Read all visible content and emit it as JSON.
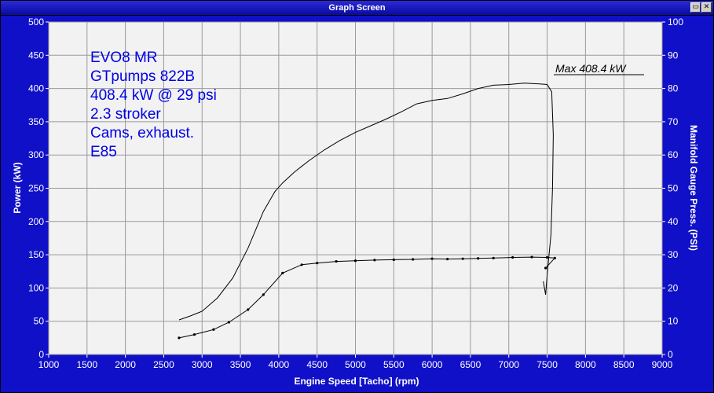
{
  "window": {
    "title": "Graph Screen"
  },
  "chart_data": {
    "type": "line",
    "xlabel": "Engine Speed [Tacho] (rpm)",
    "ylabel": "Power (kW)",
    "y2label": "Manifold Gauge Press. (PSI)",
    "xlim": [
      1000,
      9000
    ],
    "ylim": [
      0,
      500
    ],
    "y2lim": [
      0,
      100
    ],
    "xticks": [
      1000,
      1500,
      2000,
      2500,
      3000,
      3500,
      4000,
      4500,
      5000,
      5500,
      6000,
      6500,
      7000,
      7500,
      8000,
      8500,
      9000
    ],
    "yticks": [
      0,
      50,
      100,
      150,
      200,
      250,
      300,
      350,
      400,
      450,
      500
    ],
    "y2ticks": [
      0,
      10,
      20,
      30,
      40,
      50,
      60,
      70,
      80,
      90,
      100
    ],
    "grid": true,
    "plot_background": "#f2f2f2",
    "annotations": [
      "EVO8 MR",
      "GTpumps 822B",
      "408.4 kW @ 29 psi",
      "2.3 stroker",
      "Cams, exhaust.",
      "E85"
    ],
    "max_label": "Max 408.4 kW",
    "series": [
      {
        "axis": "left",
        "x": [
          2700,
          2850,
          3000,
          3200,
          3400,
          3600,
          3800,
          3950,
          4050,
          4200,
          4400,
          4600,
          4800,
          5000,
          5200,
          5400,
          5600,
          5800,
          6000,
          6200,
          6400,
          6600,
          6800,
          7000,
          7200,
          7400,
          7500,
          7560,
          7580,
          7570,
          7550,
          7500,
          7480,
          7450
        ],
        "y": [
          52,
          58,
          65,
          85,
          115,
          160,
          215,
          245,
          258,
          274,
          292,
          308,
          322,
          334,
          344,
          354,
          365,
          377,
          382,
          385,
          392,
          400,
          405,
          406,
          408,
          407,
          406,
          395,
          330,
          250,
          180,
          120,
          90,
          110
        ]
      },
      {
        "axis": "right",
        "x": [
          2700,
          2900,
          3150,
          3350,
          3600,
          3800,
          4050,
          4300,
          4500,
          4750,
          5000,
          5250,
          5500,
          5750,
          6000,
          6200,
          6400,
          6600,
          6800,
          7050,
          7300,
          7500,
          7600,
          7480
        ],
        "y": [
          5,
          6,
          7.5,
          9.7,
          13.5,
          18,
          24.5,
          27,
          27.5,
          28,
          28.2,
          28.4,
          28.5,
          28.6,
          28.8,
          28.7,
          28.8,
          28.9,
          29,
          29.2,
          29.3,
          29.2,
          29,
          26
        ]
      }
    ]
  }
}
